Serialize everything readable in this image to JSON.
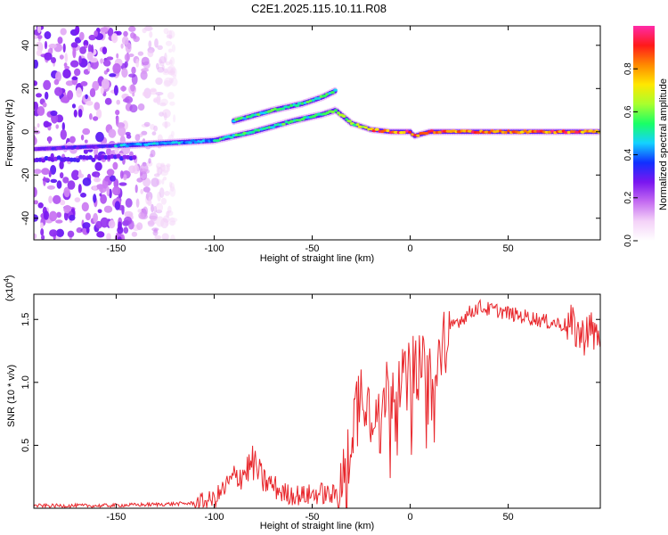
{
  "title": "C2E1.2025.115.10.11.R08",
  "colors": {
    "snr_line": "#e8262b",
    "axis": "#000000",
    "background": "#ffffff",
    "colorbar": [
      "#ffffff",
      "#f4d2f8",
      "#c46bf1",
      "#7a16f0",
      "#1030ff",
      "#14d2ff",
      "#19ff66",
      "#a8ff2e",
      "#ffe700",
      "#ff8a00",
      "#ff1a1a",
      "#ff2aa8"
    ]
  },
  "chart_data": [
    {
      "type": "heatmap",
      "title": "C2E1.2025.115.10.11.R08",
      "xlabel": "Height of straight line (km)",
      "ylabel": "Frequency (Hz)",
      "xlim": [
        -192,
        97
      ],
      "ylim": [
        -50,
        49
      ],
      "xticks": [
        -150,
        -100,
        -50,
        0,
        50
      ],
      "yticks": [
        -40,
        -20,
        0,
        20,
        40
      ],
      "colorbar": {
        "label": "Normalized spectral amplitude",
        "range": [
          0,
          1
        ],
        "ticks": [
          0.0,
          0.2,
          0.4,
          0.6,
          0.8
        ]
      },
      "features": [
        {
          "name": "main-frequency-trace",
          "x": [
            -192,
            -140,
            -120,
            -100,
            -80,
            -60,
            -45,
            -38,
            -30,
            -20,
            -10,
            0,
            2,
            10,
            30,
            50,
            97
          ],
          "y": [
            -8,
            -6,
            -5,
            -4,
            0,
            5,
            8,
            10,
            4,
            1,
            0,
            0,
            -2,
            0,
            0,
            0,
            0
          ]
        },
        {
          "name": "upper-frequency-branch",
          "x": [
            -90,
            -70,
            -55,
            -45,
            -38
          ],
          "y": [
            5,
            10,
            13,
            16,
            19
          ]
        },
        {
          "name": "lower-band-trace",
          "x": [
            -192,
            -150,
            -140
          ],
          "y": [
            -13,
            -12,
            -12
          ]
        },
        {
          "name": "diffuse-noise-region",
          "x_range": [
            -192,
            -130
          ],
          "y_range": [
            -50,
            49
          ]
        }
      ]
    },
    {
      "type": "line",
      "xlabel": "Height of straight line (km)",
      "ylabel": "SNR (10 * v/v)",
      "exponent_label": "(x10",
      "exponent_power": "4",
      "exponent_close": ")",
      "xlim": [
        -192,
        97
      ],
      "ylim": [
        0,
        1.7
      ],
      "xticks": [
        -150,
        -100,
        -50,
        0,
        50
      ],
      "yticks": [
        0.5,
        1.0,
        1.5
      ],
      "ytick_labels": [
        "0.5",
        "1.0",
        "1.5"
      ],
      "series": [
        {
          "name": "SNR",
          "x": [
            -192,
            -160,
            -130,
            -110,
            -100,
            -95,
            -90,
            -85,
            -80,
            -75,
            -70,
            -65,
            -60,
            -55,
            -50,
            -45,
            -40,
            -37,
            -35,
            -32,
            -30,
            -28,
            -25,
            -22,
            -20,
            -18,
            -15,
            -12,
            -10,
            -8,
            -5,
            -2,
            0,
            3,
            6,
            9,
            12,
            15,
            18,
            20,
            23,
            26,
            30,
            35,
            40,
            45,
            50,
            55,
            60,
            65,
            70,
            75,
            80,
            85,
            88,
            90,
            92,
            95,
            97
          ],
          "y": [
            0.02,
            0.02,
            0.03,
            0.04,
            0.07,
            0.15,
            0.24,
            0.28,
            0.36,
            0.22,
            0.18,
            0.12,
            0.11,
            0.1,
            0.11,
            0.12,
            0.1,
            0.12,
            0.18,
            0.35,
            0.6,
            0.8,
            0.95,
            0.9,
            0.72,
            0.9,
            0.85,
            0.95,
            0.9,
            1.05,
            1.08,
            0.95,
            1.1,
            1.15,
            1.08,
            1.18,
            0.85,
            1.25,
            1.35,
            1.4,
            1.48,
            1.5,
            1.55,
            1.6,
            1.58,
            1.57,
            1.55,
            1.53,
            1.52,
            1.5,
            1.48,
            1.47,
            1.45,
            1.42,
            1.35,
            1.45,
            1.4,
            1.38,
            1.38
          ]
        }
      ]
    }
  ]
}
